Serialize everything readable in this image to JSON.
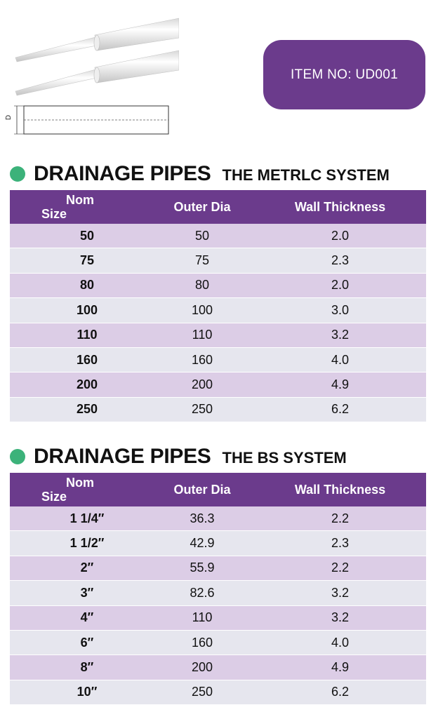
{
  "item_badge": {
    "label": "ITEM NO: UD001"
  },
  "diagram": {
    "dimension_label": "D"
  },
  "metric": {
    "title": "DRAINAGE PIPES",
    "subtitle": "THE METRLC SYSTEM",
    "headers": {
      "nom_line1": "Nom",
      "nom_line2": "Size",
      "outer": "Outer Dia",
      "wall": "Wall Thickness"
    },
    "rows": [
      {
        "nom": "50",
        "outer": "50",
        "wall": "2.0"
      },
      {
        "nom": "75",
        "outer": "75",
        "wall": "2.3"
      },
      {
        "nom": "80",
        "outer": "80",
        "wall": "2.0"
      },
      {
        "nom": "100",
        "outer": "100",
        "wall": "3.0"
      },
      {
        "nom": "110",
        "outer": "110",
        "wall": "3.2"
      },
      {
        "nom": "160",
        "outer": "160",
        "wall": "4.0"
      },
      {
        "nom": "200",
        "outer": "200",
        "wall": "4.9"
      },
      {
        "nom": "250",
        "outer": "250",
        "wall": "6.2"
      }
    ]
  },
  "bs": {
    "title": "DRAINAGE PIPES",
    "subtitle": "THE BS SYSTEM",
    "headers": {
      "nom_line1": "Nom",
      "nom_line2": "Size",
      "outer": "Outer Dia",
      "wall": "Wall Thickness"
    },
    "rows": [
      {
        "nom": "1 1/4″",
        "outer": "36.3",
        "wall": "2.2"
      },
      {
        "nom": "1 1/2″",
        "outer": "42.9",
        "wall": "2.3"
      },
      {
        "nom": "2″",
        "outer": "55.9",
        "wall": "2.2"
      },
      {
        "nom": "3″",
        "outer": "82.6",
        "wall": "3.2"
      },
      {
        "nom": "4″",
        "outer": "110",
        "wall": "3.2"
      },
      {
        "nom": "6″",
        "outer": "160",
        "wall": "4.0"
      },
      {
        "nom": "8″",
        "outer": "200",
        "wall": "4.9"
      },
      {
        "nom": "10″",
        "outer": "250",
        "wall": "6.2"
      }
    ]
  },
  "colors": {
    "accent": "#6b3b8c",
    "bullet": "#3cb27a",
    "row_odd": "#dccde6",
    "row_even": "#e6e6ee"
  }
}
